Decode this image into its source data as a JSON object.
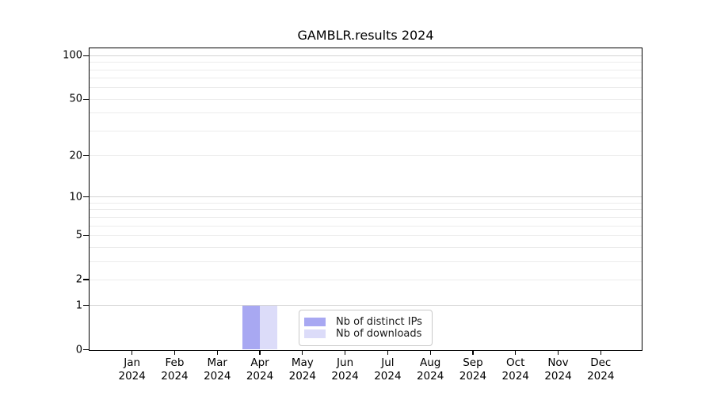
{
  "chart_data": {
    "type": "bar",
    "title": "GAMBLR.results 2024",
    "year_label": "2024",
    "categories": [
      "Jan",
      "Feb",
      "Mar",
      "Apr",
      "May",
      "Jun",
      "Jul",
      "Aug",
      "Sep",
      "Oct",
      "Nov",
      "Dec"
    ],
    "series": [
      {
        "name": "Nb of distinct IPs",
        "color": "#a8a8f2",
        "values": [
          0,
          0,
          0,
          1,
          0,
          0,
          0,
          0,
          0,
          0,
          0,
          0
        ]
      },
      {
        "name": "Nb of downloads",
        "color": "#dcdcf9",
        "values": [
          0,
          0,
          0,
          1,
          0,
          0,
          0,
          0,
          0,
          0,
          0,
          0
        ]
      }
    ],
    "yscale": "pseudo-log (log1p)",
    "ylim": [
      0,
      100
    ],
    "yticks": [
      0,
      1,
      2,
      5,
      10,
      20,
      50,
      100
    ],
    "major_grid_values": [
      1,
      10,
      100
    ],
    "minor_grid_values": [
      2,
      3,
      4,
      5,
      6,
      7,
      8,
      9,
      20,
      30,
      40,
      50,
      60,
      70,
      80,
      90
    ],
    "grid": "horizontal",
    "legend_position": "inside bottom-center",
    "colors": {
      "bar_distinct_ips": "#a8a8f2",
      "bar_downloads": "#dcdcf9",
      "major_grid": "#d4d4d4",
      "minor_grid": "#ececec",
      "axis": "#000000",
      "background": "#ffffff"
    }
  }
}
